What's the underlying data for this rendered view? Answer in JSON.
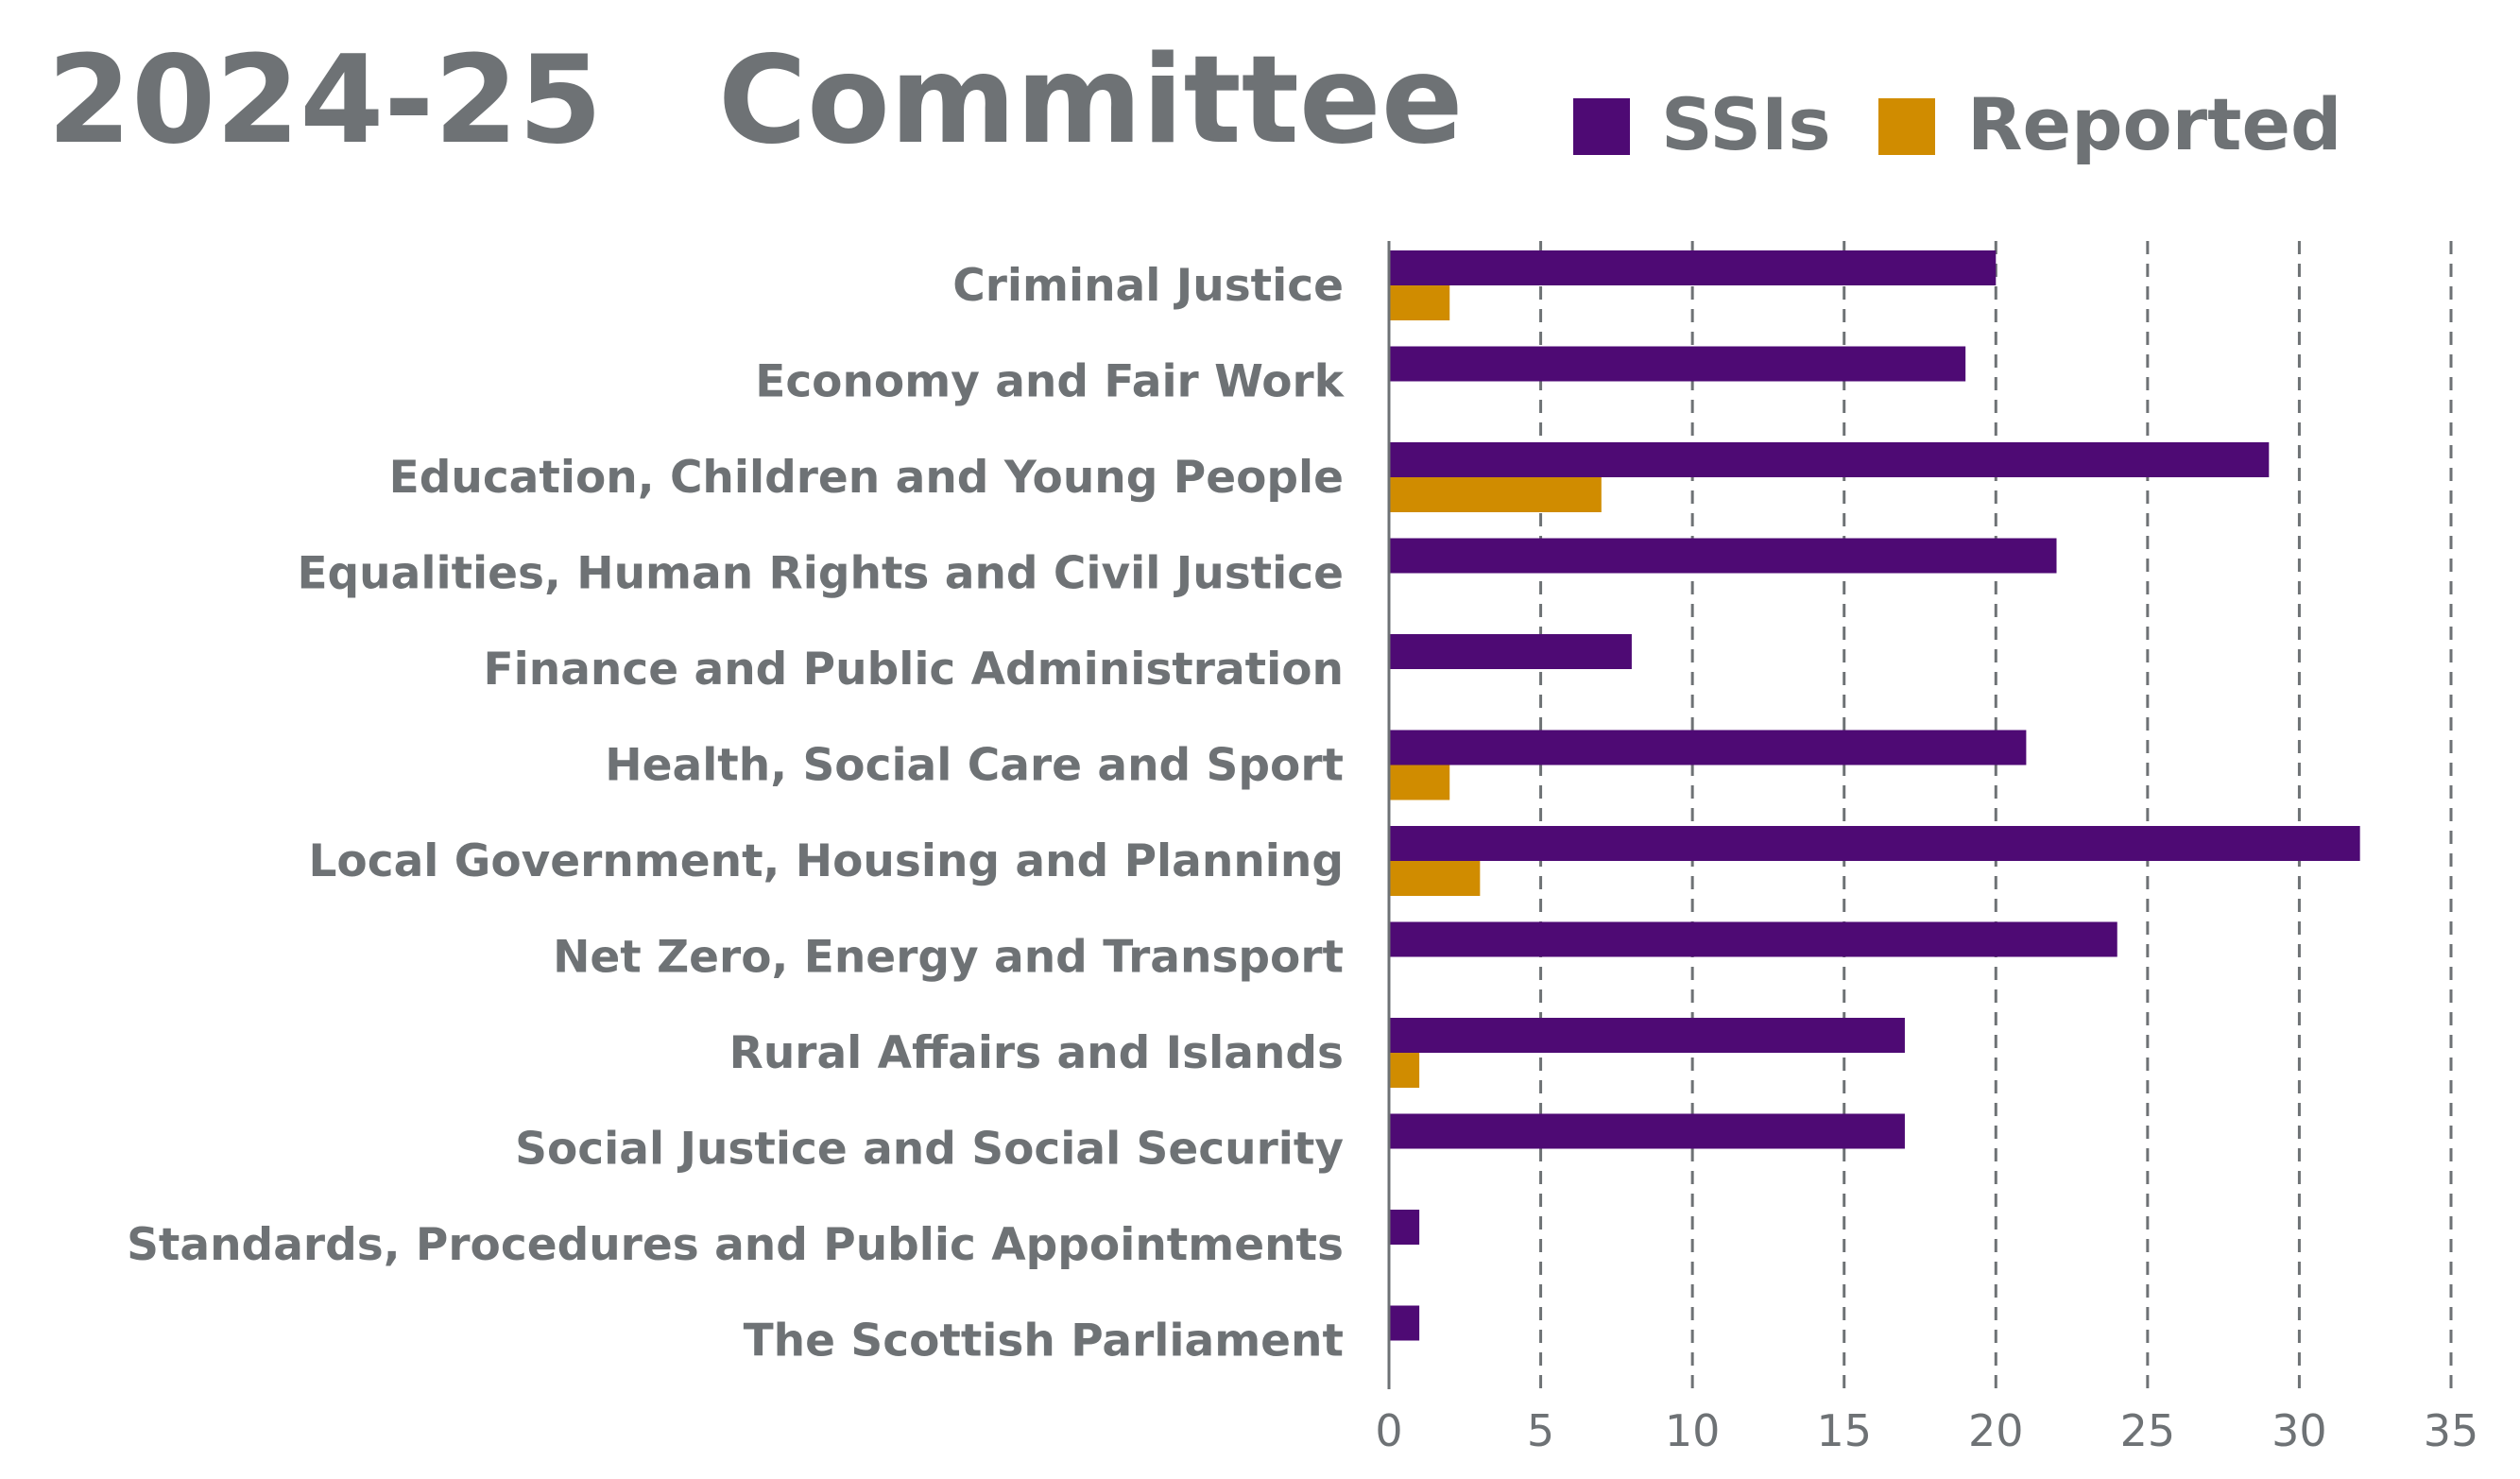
{
  "colors": {
    "ssis": "#4e0a74",
    "reported": "#d08c00",
    "text": "#6e7275",
    "grid": "#6e7275"
  },
  "chart_data": {
    "type": "bar",
    "orientation": "horizontal",
    "title": "2024-25",
    "subtitle": "Committee",
    "categories": [
      "Criminal Justice",
      "Economy and Fair Work",
      "Education, Children and Young People",
      "Equalities, Human Rights and Civil Justice",
      "Finance and Public Administration",
      "Health, Social Care and Sport",
      "Local Government, Housing and Planning",
      "Net Zero, Energy and Transport",
      "Rural Affairs and Islands",
      "Social Justice and Social Security",
      "Standards, Procedures and Public Appointments",
      "The Scottish Parliament"
    ],
    "series": [
      {
        "name": "SSIs",
        "color": "#4e0a74",
        "values": [
          20,
          19,
          29,
          22,
          8,
          21,
          32,
          24,
          17,
          17,
          1,
          1
        ]
      },
      {
        "name": "Reported",
        "color": "#d08c00",
        "values": [
          2,
          0,
          7,
          0,
          0,
          2,
          3,
          0,
          1,
          0,
          0,
          0
        ]
      }
    ],
    "xlim": [
      0,
      35
    ],
    "xticks": [
      "0",
      "5",
      "10",
      "15",
      "20",
      "25",
      "30",
      "35"
    ],
    "xtick_values": [
      0,
      5,
      10,
      15,
      20,
      25,
      30,
      35
    ],
    "grid": "vertical dashed",
    "legend_position": "top-right"
  }
}
